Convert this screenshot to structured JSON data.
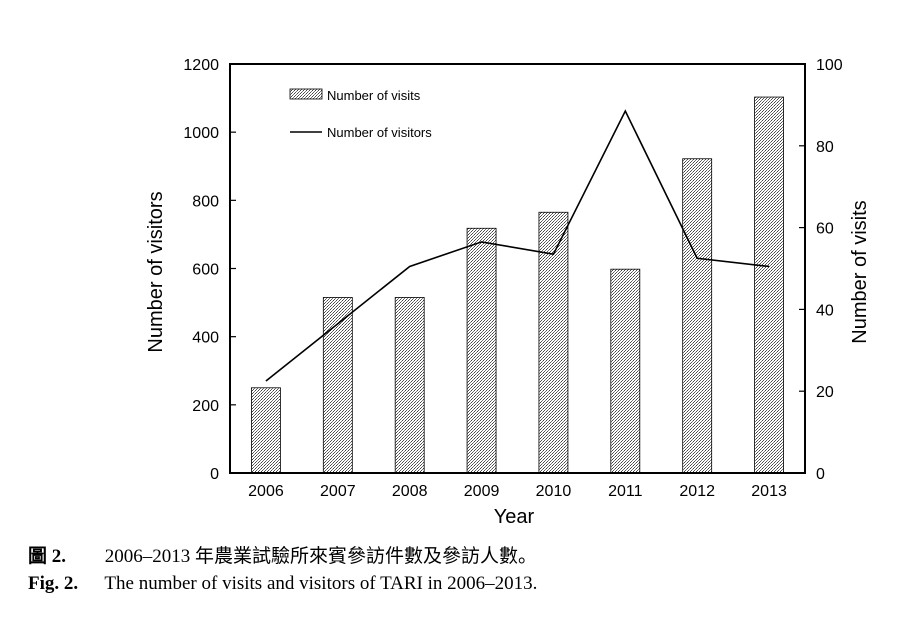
{
  "chart_data": {
    "type": "bar",
    "xlabel": "Year",
    "ylabel": "Number of visitors",
    "y2label": "Number of visits",
    "categories": [
      "2006",
      "2007",
      "2008",
      "2009",
      "2010",
      "2011",
      "2012",
      "2013"
    ],
    "ylim": [
      0,
      1200
    ],
    "y2lim": [
      0,
      100
    ],
    "yticks": [
      "0",
      "200",
      "400",
      "600",
      "800",
      "1000",
      "1200"
    ],
    "y2ticks": [
      "0",
      "20",
      "40",
      "60",
      "80",
      "100"
    ],
    "series": [
      {
        "name": "Number of visits",
        "type": "bar",
        "axis": "left",
        "values": [
          250,
          515,
          515,
          718,
          765,
          598,
          922,
          1103
        ]
      },
      {
        "name": "Number of visitors",
        "type": "line",
        "axis": "right",
        "values": [
          22.5,
          36.5,
          50.5,
          56.5,
          53.5,
          88.5,
          52.5,
          50.5
        ]
      }
    ],
    "legend": "top-left",
    "grid": false
  },
  "caption": {
    "zh_label": "圖 2.",
    "zh_text": "2006–2013 年農業試驗所來賓參訪件數及參訪人數。",
    "en_label": "Fig. 2.",
    "en_text": "The number of visits and visitors of TARI in 2006–2013."
  }
}
